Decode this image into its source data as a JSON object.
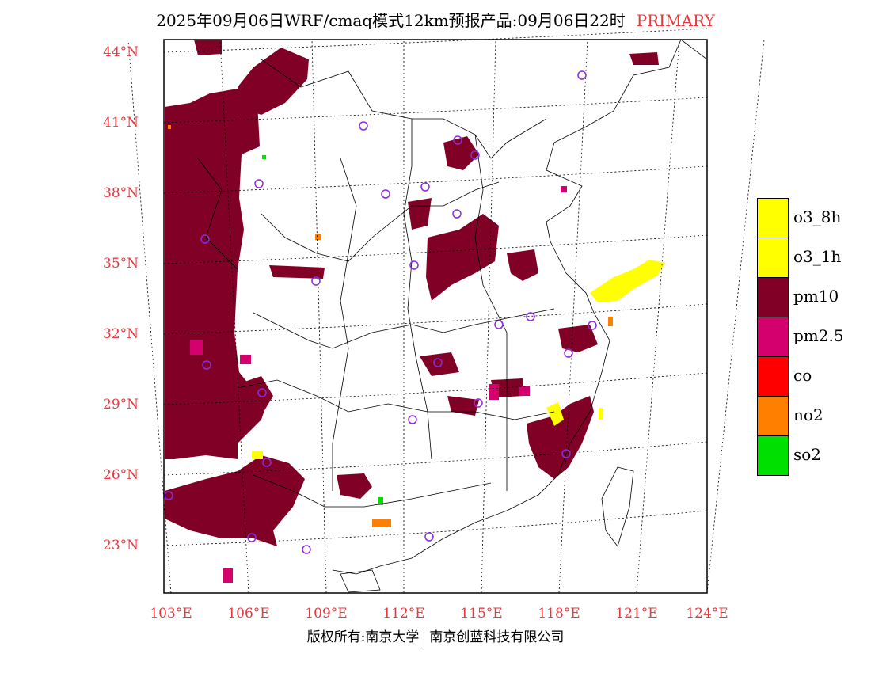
{
  "title": {
    "main": "2025年09月06日WRF/cmaq模式12km预报产品:09月06日22时",
    "tag": "PRIMARY"
  },
  "lat_labels": [
    "44°N",
    "41°N",
    "38°N",
    "35°N",
    "32°N",
    "29°N",
    "26°N",
    "23°N"
  ],
  "lon_labels": [
    "103°E",
    "106°E",
    "109°E",
    "112°E",
    "115°E",
    "118°E",
    "121°E",
    "124°E"
  ],
  "legend": [
    {
      "label": "o3_8h",
      "color": "#ffff00"
    },
    {
      "label": "o3_1h",
      "color": "#ffff00"
    },
    {
      "label": "pm10",
      "color": "#800026"
    },
    {
      "label": "pm2.5",
      "color": "#d4006e"
    },
    {
      "label": "co",
      "color": "#ff0000"
    },
    {
      "label": "no2",
      "color": "#ff7f00"
    },
    {
      "label": "so2",
      "color": "#00e000"
    }
  ],
  "copyright": {
    "left": "版权所有:南京大学",
    "right": "南京创蓝科技有限公司"
  },
  "map_data": {
    "region": "China (east)",
    "lat_range": [
      21,
      44.5
    ],
    "lon_range": [
      102.5,
      124
    ],
    "colors": {
      "pm10": "#800026",
      "pm25": "#d4006e",
      "o3": "#ffff00",
      "no2": "#ff7f00",
      "so2": "#00e000",
      "station": "#8a2be2",
      "grid": "#000000"
    }
  }
}
